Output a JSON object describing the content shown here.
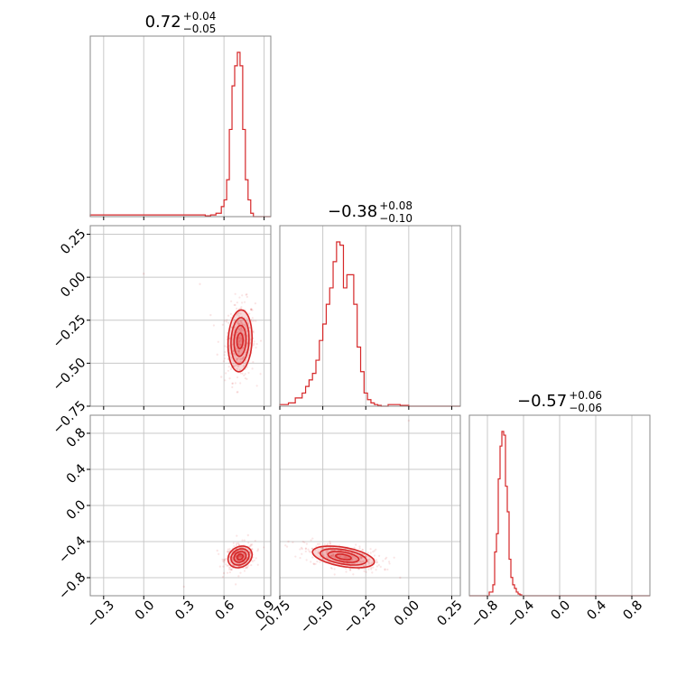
{
  "chart_data": {
    "type": "corner",
    "color": "#d62728",
    "parameters": [
      {
        "title": {
          "median": "0.72",
          "upper": "+0.04",
          "lower": "−0.05"
        },
        "range": [
          -0.4,
          0.95
        ],
        "ticks": [
          {
            "v": -0.3,
            "label": "−0.3"
          },
          {
            "v": 0.0,
            "label": "0.0"
          },
          {
            "v": 0.3,
            "label": "0.3"
          },
          {
            "v": 0.6,
            "label": "0.6"
          },
          {
            "v": 0.9,
            "label": "0.9"
          }
        ],
        "hist": {
          "edges": [
            -0.4,
            0.46,
            0.5,
            0.54,
            0.58,
            0.6,
            0.62,
            0.64,
            0.66,
            0.68,
            0.7,
            0.72,
            0.74,
            0.76,
            0.78,
            0.8,
            0.82,
            0.95
          ],
          "counts": [
            0.01,
            0.005,
            0.01,
            0.02,
            0.06,
            0.1,
            0.22,
            0.52,
            0.78,
            0.9,
            0.98,
            0.9,
            0.52,
            0.22,
            0.1,
            0.02,
            0.0
          ]
        },
        "grid": true
      },
      {
        "title": {
          "median": "−0.38",
          "upper": "+0.08",
          "lower": "−0.10"
        },
        "range": [
          -0.75,
          0.3
        ],
        "ticks": [
          {
            "v": -0.75,
            "label": "−0.75"
          },
          {
            "v": -0.5,
            "label": "−0.50"
          },
          {
            "v": -0.25,
            "label": "−0.25"
          },
          {
            "v": 0.0,
            "label": "0.00"
          },
          {
            "v": 0.25,
            "label": "0.25"
          }
        ],
        "yticks": [
          {
            "v": 0.25,
            "label": "0.25"
          },
          {
            "v": 0.0,
            "label": "0.00"
          },
          {
            "v": -0.25,
            "label": "−0.25"
          },
          {
            "v": -0.5,
            "label": "−0.50"
          },
          {
            "v": -0.75,
            "label": "−0.75"
          }
        ],
        "hist": {
          "edges": [
            -0.75,
            -0.7,
            -0.66,
            -0.62,
            -0.6,
            -0.58,
            -0.56,
            -0.54,
            -0.52,
            -0.5,
            -0.48,
            -0.46,
            -0.44,
            -0.42,
            -0.4,
            -0.38,
            -0.36,
            -0.34,
            -0.32,
            -0.3,
            -0.28,
            -0.26,
            -0.24,
            -0.22,
            -0.2,
            -0.18,
            -0.16,
            -0.12,
            -0.05,
            0.0,
            0.3
          ],
          "counts": [
            0.01,
            0.02,
            0.05,
            0.08,
            0.12,
            0.16,
            0.2,
            0.28,
            0.4,
            0.5,
            0.62,
            0.72,
            0.88,
            1.0,
            0.98,
            0.72,
            0.8,
            0.8,
            0.62,
            0.36,
            0.21,
            0.08,
            0.04,
            0.02,
            0.01,
            0.005,
            0.0,
            0.01,
            0.005,
            0.0
          ]
        },
        "grid": true
      },
      {
        "title": {
          "median": "−0.57",
          "upper": "+0.06",
          "lower": "−0.06"
        },
        "range": [
          -1.0,
          1.0
        ],
        "ticks": [
          {
            "v": -0.8,
            "label": "−0.8"
          },
          {
            "v": -0.4,
            "label": "−0.4"
          },
          {
            "v": 0.0,
            "label": "0.0"
          },
          {
            "v": 0.4,
            "label": "0.4"
          },
          {
            "v": 0.8,
            "label": "0.8"
          }
        ],
        "yticks": [
          {
            "v": 0.8,
            "label": "0.8"
          },
          {
            "v": 0.4,
            "label": "0.4"
          },
          {
            "v": 0.0,
            "label": "0.0"
          },
          {
            "v": -0.4,
            "label": "−0.4"
          },
          {
            "v": -0.8,
            "label": "−0.8"
          }
        ],
        "hist": {
          "edges": [
            -1.0,
            -0.78,
            -0.74,
            -0.72,
            -0.7,
            -0.68,
            -0.66,
            -0.64,
            -0.62,
            -0.6,
            -0.58,
            -0.56,
            -0.54,
            -0.52,
            -0.5,
            -0.48,
            -0.46,
            -0.44,
            -0.42,
            -0.38,
            1.0
          ],
          "counts": [
            0.0,
            0.02,
            0.06,
            0.24,
            0.34,
            0.64,
            0.82,
            0.9,
            0.88,
            0.6,
            0.46,
            0.2,
            0.1,
            0.06,
            0.04,
            0.02,
            0.01,
            0.005,
            0.0,
            0.0
          ]
        },
        "grid": true
      }
    ],
    "pairs": [
      {
        "xi": 0,
        "yi": 1,
        "center": [
          0.72,
          -0.37
        ],
        "sigma": [
          0.045,
          0.09
        ],
        "rho": 0.1,
        "levels": [
          0.5,
          1.0,
          1.5,
          2.0
        ],
        "outliers": [
          [
            0.0,
            0.02
          ],
          [
            0.42,
            -0.04
          ],
          [
            0.5,
            -0.22
          ],
          [
            0.55,
            -0.45
          ],
          [
            0.58,
            -0.58
          ]
        ]
      },
      {
        "xi": 0,
        "yi": 2,
        "center": [
          0.72,
          -0.57
        ],
        "sigma": [
          0.045,
          0.06
        ],
        "rho": 0.2,
        "levels": [
          0.5,
          1.0,
          1.5,
          2.0
        ],
        "outliers": [
          [
            0.3,
            -0.9
          ],
          [
            0.55,
            -0.5
          ],
          [
            0.6,
            -0.75
          ],
          [
            0.78,
            -0.33
          ]
        ]
      },
      {
        "xi": 1,
        "yi": 2,
        "center": [
          -0.38,
          -0.57
        ],
        "sigma": [
          0.09,
          0.06
        ],
        "rho": -0.45,
        "levels": [
          0.5,
          1.0,
          1.5,
          2.0
        ],
        "outliers": [
          [
            -0.7,
            -0.4
          ],
          [
            -0.62,
            -0.48
          ],
          [
            -0.55,
            -0.65
          ],
          [
            -0.05,
            -0.8
          ],
          [
            0.0,
            0.94
          ]
        ]
      }
    ]
  }
}
